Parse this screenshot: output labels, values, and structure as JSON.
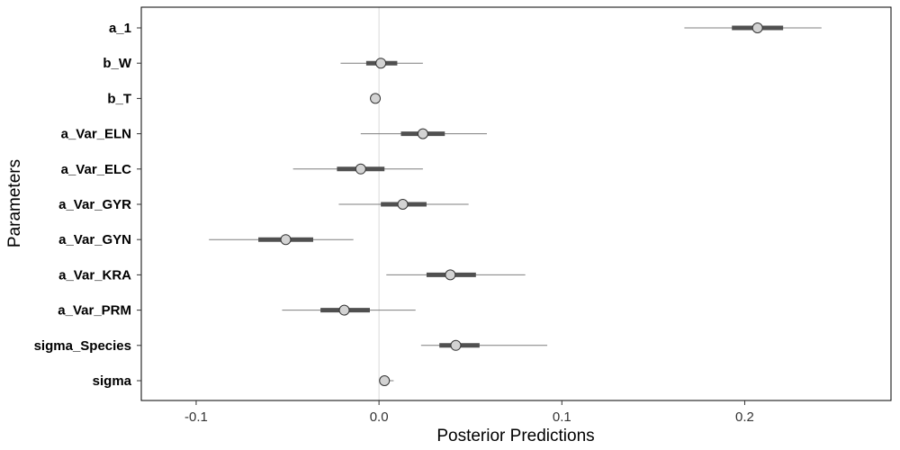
{
  "chart_data": {
    "type": "interval",
    "xlabel": "Posterior Predictions",
    "ylabel": "Parameters",
    "xlim": [
      -0.13,
      0.28
    ],
    "x_ticks": [
      -0.1,
      0.0,
      0.1,
      0.2
    ],
    "x_tick_labels": [
      "-0.1",
      "0.0",
      "0.1",
      "0.2"
    ],
    "reference_line_x": 0.0,
    "grid": false,
    "colors": {
      "outer_interval": "#7f7f7f",
      "inner_interval": "#505050",
      "point_fill": "#d3d3d3",
      "point_stroke": "#333333",
      "reference_line": "#d9d9d9",
      "frame": "#000000"
    },
    "parameters": [
      {
        "name": "a_1",
        "median": 0.207,
        "inner": [
          0.193,
          0.221
        ],
        "outer": [
          0.167,
          0.242
        ]
      },
      {
        "name": "b_W",
        "median": 0.001,
        "inner": [
          -0.007,
          0.01
        ],
        "outer": [
          -0.021,
          0.024
        ]
      },
      {
        "name": "b_T",
        "median": -0.002,
        "inner": [
          -0.003,
          -0.001
        ],
        "outer": [
          -0.004,
          0.0
        ]
      },
      {
        "name": "a_Var_ELN",
        "median": 0.024,
        "inner": [
          0.012,
          0.036
        ],
        "outer": [
          -0.01,
          0.059
        ]
      },
      {
        "name": "a_Var_ELC",
        "median": -0.01,
        "inner": [
          -0.023,
          0.003
        ],
        "outer": [
          -0.047,
          0.024
        ]
      },
      {
        "name": "a_Var_GYR",
        "median": 0.013,
        "inner": [
          0.001,
          0.026
        ],
        "outer": [
          -0.022,
          0.049
        ]
      },
      {
        "name": "a_Var_GYN",
        "median": -0.051,
        "inner": [
          -0.066,
          -0.036
        ],
        "outer": [
          -0.093,
          -0.014
        ]
      },
      {
        "name": "a_Var_KRA",
        "median": 0.039,
        "inner": [
          0.026,
          0.053
        ],
        "outer": [
          0.004,
          0.08
        ]
      },
      {
        "name": "a_Var_PRM",
        "median": -0.019,
        "inner": [
          -0.032,
          -0.005
        ],
        "outer": [
          -0.053,
          0.02
        ]
      },
      {
        "name": "sigma_Species",
        "median": 0.042,
        "inner": [
          0.033,
          0.055
        ],
        "outer": [
          0.023,
          0.092
        ]
      },
      {
        "name": "sigma",
        "median": 0.003,
        "inner": [
          0.002,
          0.005
        ],
        "outer": [
          0.001,
          0.008
        ]
      }
    ]
  }
}
